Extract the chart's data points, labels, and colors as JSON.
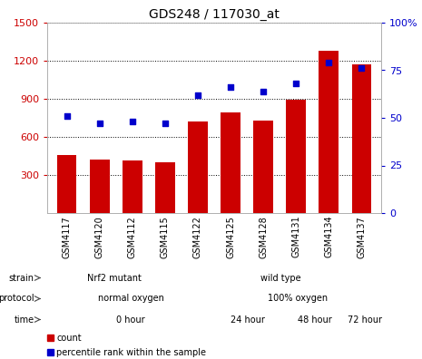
{
  "title": "GDS248 / 117030_at",
  "samples": [
    "GSM4117",
    "GSM4120",
    "GSM4112",
    "GSM4115",
    "GSM4122",
    "GSM4125",
    "GSM4128",
    "GSM4131",
    "GSM4134",
    "GSM4137"
  ],
  "counts": [
    460,
    420,
    415,
    400,
    720,
    790,
    730,
    890,
    1280,
    1175
  ],
  "percentiles": [
    51,
    47,
    48,
    47,
    62,
    66,
    64,
    68,
    79,
    76
  ],
  "ylim_left": [
    0,
    1500
  ],
  "ylim_right": [
    0,
    100
  ],
  "yticks_left": [
    300,
    600,
    900,
    1200,
    1500
  ],
  "yticks_right": [
    0,
    25,
    50,
    75,
    100
  ],
  "bar_color": "#cc0000",
  "dot_color": "#0000cc",
  "grid_color": "#000000",
  "strain_labels": [
    {
      "text": "Nrf2 mutant",
      "start": 0,
      "end": 4,
      "color": "#90ee90"
    },
    {
      "text": "wild type",
      "start": 4,
      "end": 10,
      "color": "#66cc66"
    }
  ],
  "protocol_labels": [
    {
      "text": "normal oxygen",
      "start": 0,
      "end": 5,
      "color": "#aaaaee"
    },
    {
      "text": "100% oxygen",
      "start": 5,
      "end": 10,
      "color": "#9988dd"
    }
  ],
  "time_labels": [
    {
      "text": "0 hour",
      "start": 0,
      "end": 5,
      "color": "#ffcccc"
    },
    {
      "text": "24 hour",
      "start": 5,
      "end": 7,
      "color": "#ffaaaa"
    },
    {
      "text": "48 hour",
      "start": 7,
      "end": 9,
      "color": "#ffaaaa"
    },
    {
      "text": "72 hour",
      "start": 9,
      "end": 10,
      "color": "#cc7777"
    }
  ],
  "legend_count_color": "#cc0000",
  "legend_dot_color": "#0000cc",
  "bg_color": "#ffffff",
  "tick_label_color_left": "#cc0000",
  "tick_label_color_right": "#0000cc"
}
